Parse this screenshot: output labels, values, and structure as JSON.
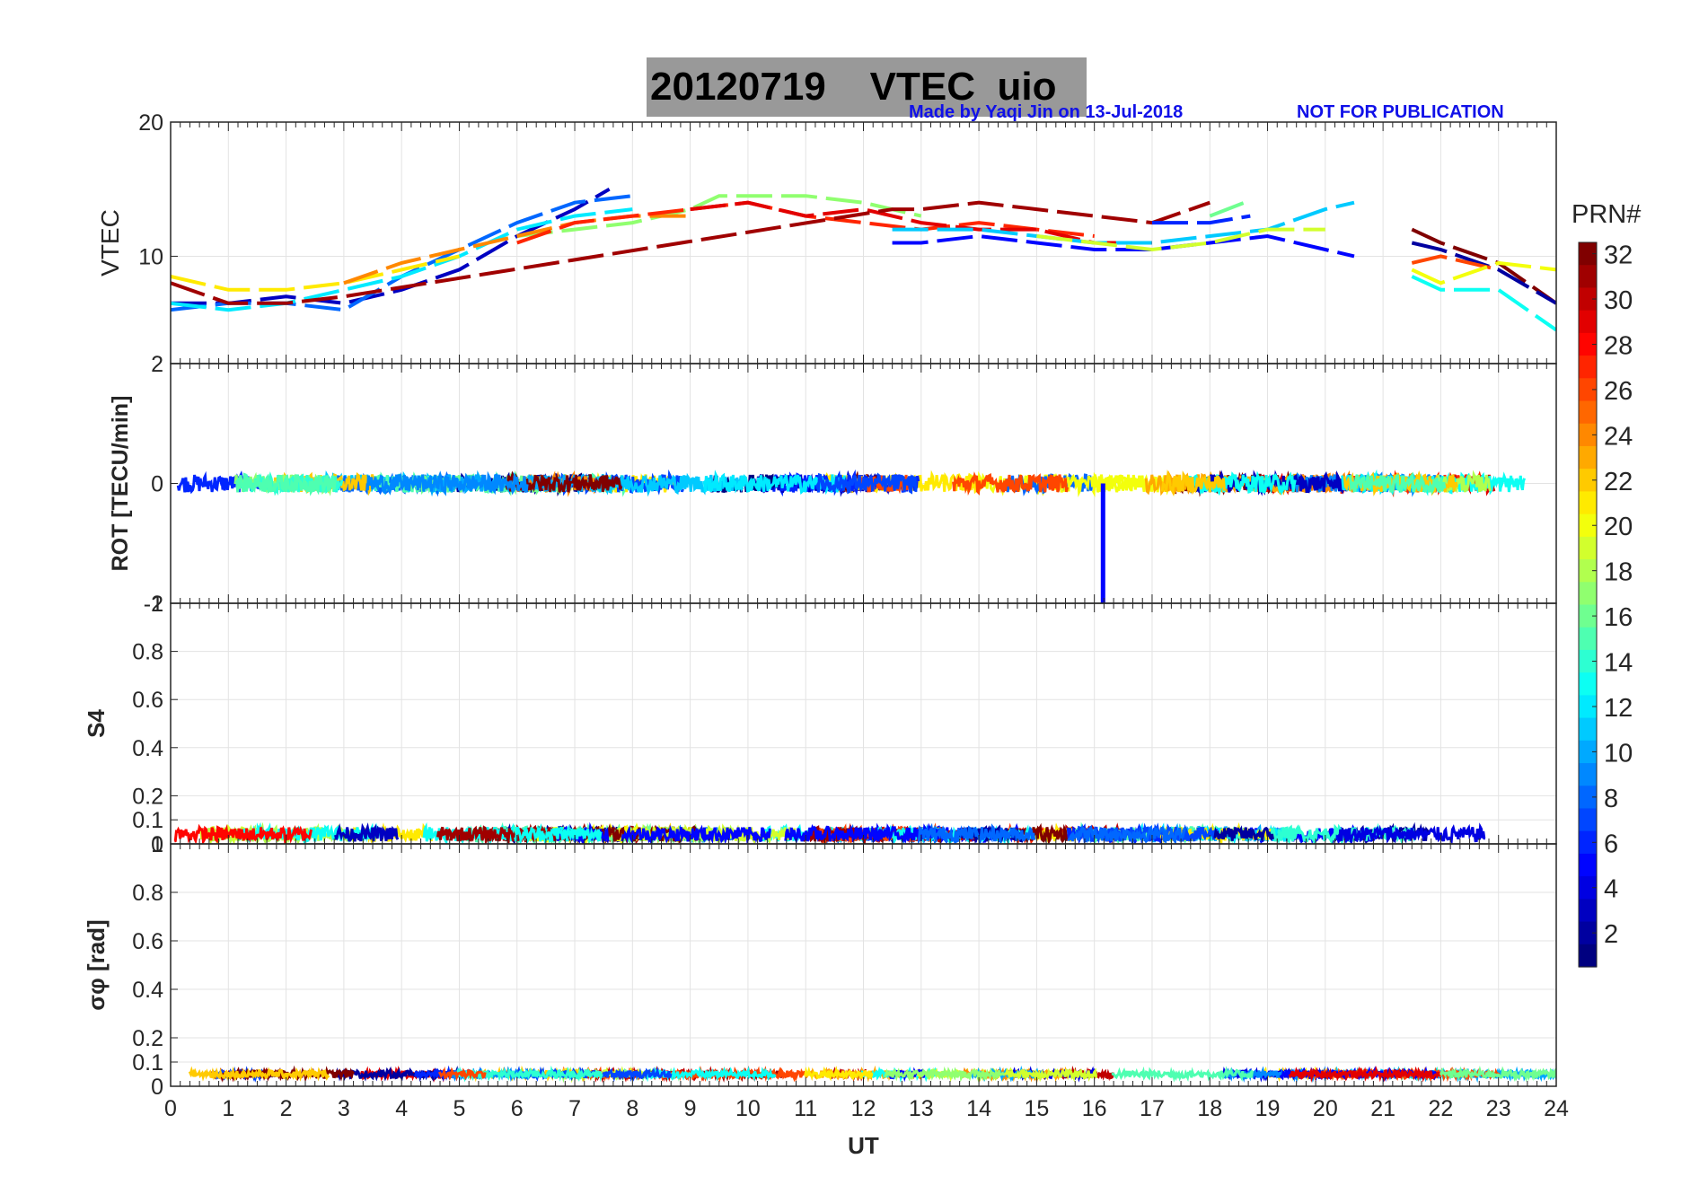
{
  "title": {
    "date": "20120719",
    "label": "VTEC",
    "station": "uio",
    "credit": "Made by Yaqi Jin on 13-Jul-2018",
    "notice": "NOT FOR PUBLICATION"
  },
  "colors": {
    "credit": "#1010e8",
    "title_bg": "#999999",
    "grid": "#e3e3e3",
    "colormap": "jet"
  },
  "chart_data": [
    {
      "type": "line",
      "panel": "VTEC",
      "ylabel": "VTEC",
      "ylim": [
        2,
        20
      ],
      "yticks": [
        "10",
        "20"
      ],
      "xlim": [
        0,
        24
      ],
      "grid": true,
      "series": [
        {
          "prn": 3,
          "x": [
            0,
            1,
            2,
            3,
            4,
            5,
            6,
            7,
            7.6
          ],
          "y": [
            6.5,
            6.5,
            7.0,
            6.5,
            7.5,
            9.0,
            11.5,
            13.5,
            15.0
          ]
        },
        {
          "prn": 8,
          "x": [
            0,
            1,
            2,
            3,
            4,
            5,
            6,
            7,
            8
          ],
          "y": [
            6.0,
            6.5,
            6.5,
            6.0,
            8.5,
            10.5,
            12.5,
            14.0,
            14.5
          ]
        },
        {
          "prn": 12,
          "x": [
            0,
            1,
            2,
            3,
            4,
            5,
            6,
            7,
            8
          ],
          "y": [
            6.5,
            6.0,
            6.5,
            7.5,
            8.5,
            10.0,
            12.0,
            13.0,
            13.5
          ]
        },
        {
          "prn": 17,
          "x": [
            6,
            7,
            8,
            9,
            9.5,
            10,
            11,
            12,
            13
          ],
          "y": [
            11.5,
            12.0,
            12.5,
            13.5,
            14.5,
            14.5,
            14.5,
            14.0,
            13.0
          ]
        },
        {
          "prn": 21,
          "x": [
            0,
            1,
            2,
            3,
            4,
            5
          ],
          "y": [
            8.5,
            7.5,
            7.5,
            8.0,
            9.0,
            10.0
          ]
        },
        {
          "prn": 24,
          "x": [
            3,
            4,
            5,
            6,
            7,
            8,
            9
          ],
          "y": [
            8.0,
            9.5,
            10.5,
            11.5,
            12.5,
            13.0,
            13.0
          ]
        },
        {
          "prn": 27,
          "x": [
            6,
            7,
            8,
            9,
            10,
            11,
            12,
            13,
            14,
            15,
            16
          ],
          "y": [
            11.0,
            12.5,
            13.0,
            13.5,
            14.0,
            13.0,
            12.5,
            12.0,
            12.5,
            12.0,
            11.5
          ]
        },
        {
          "prn": 29,
          "x": [
            9,
            10,
            11,
            12,
            13,
            14,
            15,
            16,
            17
          ],
          "y": [
            13.5,
            14.0,
            13.0,
            13.5,
            12.5,
            12.0,
            12.0,
            11.0,
            11.0
          ]
        },
        {
          "prn": 31,
          "x": [
            0,
            1,
            2,
            3,
            12.5,
            13,
            14,
            15,
            16,
            17,
            18
          ],
          "y": [
            8.0,
            6.5,
            6.5,
            7.0,
            13.5,
            13.5,
            14.0,
            13.5,
            13.0,
            12.5,
            14.0
          ]
        },
        {
          "prn": 5,
          "x": [
            12.5,
            13,
            14,
            15,
            16,
            17,
            18,
            19,
            20,
            20.5
          ],
          "y": [
            11.0,
            11.0,
            11.5,
            11.0,
            10.5,
            10.5,
            11.0,
            11.5,
            10.5,
            10.0
          ]
        },
        {
          "prn": 11,
          "x": [
            12.5,
            13,
            14,
            15,
            16,
            17,
            18,
            19,
            20,
            20.5
          ],
          "y": [
            12.0,
            12.0,
            12.0,
            11.5,
            11.0,
            11.0,
            11.5,
            12.0,
            13.5,
            14.0
          ]
        },
        {
          "prn": 19,
          "x": [
            15,
            16,
            17,
            18,
            19,
            20
          ],
          "y": [
            11.5,
            11.0,
            10.5,
            11.0,
            12.0,
            12.0
          ]
        },
        {
          "prn": 6,
          "x": [
            17,
            18,
            18.7
          ],
          "y": [
            12.5,
            12.5,
            13.0
          ]
        },
        {
          "prn": 16,
          "x": [
            18,
            18.6
          ],
          "y": [
            13.0,
            14.0
          ]
        },
        {
          "prn": 32,
          "x": [
            21.5,
            22,
            23,
            24
          ],
          "y": [
            12.0,
            11.0,
            9.5,
            6.5
          ]
        },
        {
          "prn": 2,
          "x": [
            21.5,
            22,
            23,
            24
          ],
          "y": [
            11.0,
            10.5,
            9.0,
            6.5
          ]
        },
        {
          "prn": 26,
          "x": [
            21.5,
            22,
            23
          ],
          "y": [
            9.5,
            10.0,
            9.0
          ]
        },
        {
          "prn": 20,
          "x": [
            21.5,
            22,
            23,
            24
          ],
          "y": [
            9.0,
            8.0,
            9.5,
            9.0
          ]
        },
        {
          "prn": 13,
          "x": [
            21.5,
            22,
            23,
            24
          ],
          "y": [
            8.5,
            7.5,
            7.5,
            4.5
          ]
        }
      ]
    },
    {
      "type": "line",
      "panel": "ROT",
      "ylabel": "ROT [TECU/min]",
      "ylim": [
        -2,
        2
      ],
      "yticks": [
        "-2",
        "0",
        "2"
      ],
      "xlim": [
        0,
        24
      ],
      "grid": true,
      "level": 0,
      "noise_amplitude": 0.15,
      "spikes": [
        {
          "prn": 5,
          "x": 16.15,
          "y": -2.0
        }
      ]
    },
    {
      "type": "line",
      "panel": "S4",
      "ylabel": "S4",
      "ylim": [
        0,
        1
      ],
      "yticks": [
        "0",
        "0.1",
        "0.2",
        "0.4",
        "0.6",
        "0.8",
        "1"
      ],
      "xlim": [
        0,
        24
      ],
      "grid": true,
      "level": 0.04,
      "noise_amplitude": 0.03
    },
    {
      "type": "line",
      "panel": "sigma_phi",
      "ylabel": "σφ [rad]",
      "ylim": [
        0,
        1
      ],
      "yticks": [
        "0",
        "0.1",
        "0.2",
        "0.4",
        "0.6",
        "0.8",
        "1"
      ],
      "xlim": [
        0,
        24
      ],
      "xlabel": "UT",
      "xticks": [
        "0",
        "1",
        "2",
        "3",
        "4",
        "5",
        "6",
        "7",
        "8",
        "9",
        "10",
        "11",
        "12",
        "13",
        "14",
        "15",
        "16",
        "17",
        "18",
        "19",
        "20",
        "21",
        "22",
        "23",
        "24"
      ],
      "grid": true,
      "level": 0.05,
      "noise_amplitude": 0.015
    }
  ],
  "colorbar": {
    "label": "PRN#",
    "range": [
      1,
      32
    ],
    "ticks": [
      "2",
      "4",
      "6",
      "8",
      "10",
      "12",
      "14",
      "16",
      "18",
      "20",
      "22",
      "24",
      "26",
      "28",
      "30",
      "32"
    ]
  }
}
